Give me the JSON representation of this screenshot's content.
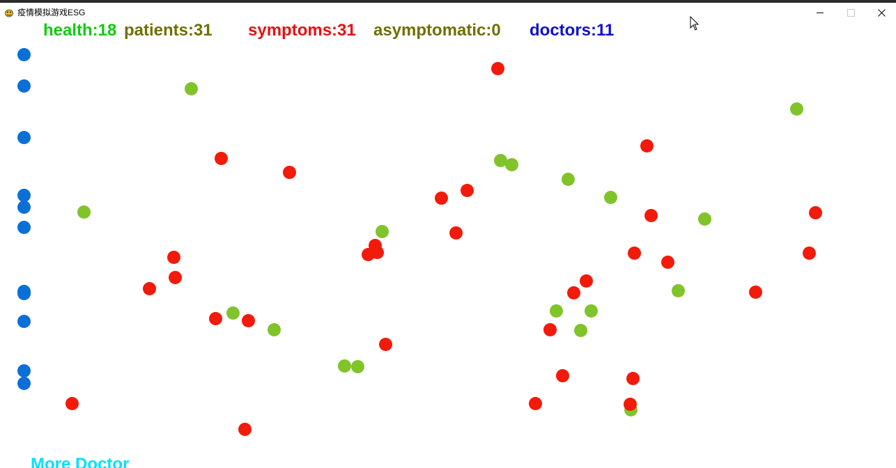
{
  "window": {
    "title": "疫情模拟游戏ESG",
    "controls": [
      "minimize",
      "maximize",
      "close"
    ]
  },
  "stats": {
    "health": "health:18",
    "patients": "patients:31",
    "symptoms": "symptoms:31",
    "asymptomatic": "asymptomatic:0",
    "doctors": "doctors:11"
  },
  "buttons": {
    "more_doctor": "More Doctor"
  },
  "colors": {
    "health": "#0fcc0f",
    "patients": "#707000",
    "symptoms": "#e81010",
    "asymptomatic": "#707000",
    "doctors": "#1010d0",
    "more_doctor": "#00e0ff",
    "doctor_dot": "#0b6fd8",
    "healthy_dot": "#80c42a",
    "symptom_dot": "#f21a0a"
  },
  "icons": {
    "app": "pygame-snake-icon",
    "cursor": "mouse-pointer-icon"
  }
}
